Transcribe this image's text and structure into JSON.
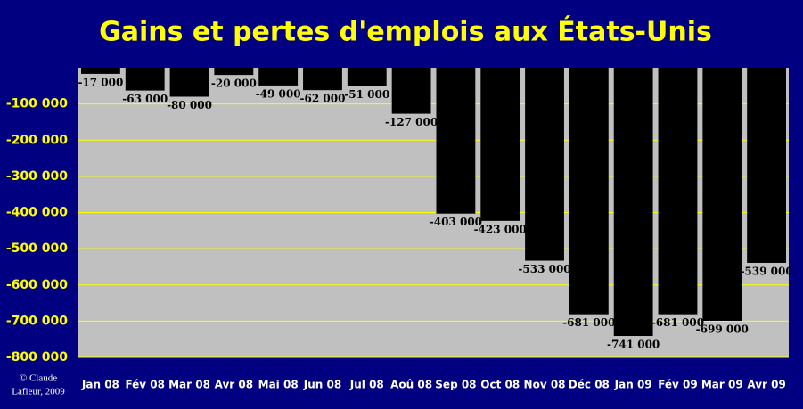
{
  "chart_data": {
    "type": "bar",
    "title": "Gains et pertes d'emplois aux États-Unis",
    "categories": [
      "Jan 08",
      "Fév 08",
      "Mar 08",
      "Avr 08",
      "Mai 08",
      "Jun 08",
      "Jul 08",
      "Aoû 08",
      "Sep 08",
      "Oct 08",
      "Nov 08",
      "Déc 08",
      "Jan 09",
      "Fév 09",
      "Mar 09",
      "Avr 09"
    ],
    "values": [
      -17000,
      -63000,
      -80000,
      -20000,
      -49000,
      -62000,
      -51000,
      -127000,
      -403000,
      -423000,
      -533000,
      -681000,
      -741000,
      -681000,
      -699000,
      -539000
    ],
    "value_labels": [
      "-17 000",
      "-63 000",
      "-80 000",
      "-20 000",
      "-49 000",
      "-62 000",
      "-51 000",
      "-127 000",
      "-403 000",
      "-423 000",
      "-533 000",
      "-681 000",
      "-741 000",
      "-681 000",
      "-699 000",
      "-539 000"
    ],
    "color": "#000000",
    "ylim": [
      -800000,
      0
    ],
    "yticks": [
      {
        "value": -100000,
        "label": "-100 000"
      },
      {
        "value": -200000,
        "label": "-200 000"
      },
      {
        "value": -300000,
        "label": "-300 000"
      },
      {
        "value": -400000,
        "label": "-400 000"
      },
      {
        "value": -500000,
        "label": "-500 000"
      },
      {
        "value": -600000,
        "label": "-600 000"
      },
      {
        "value": -700000,
        "label": "-700 000"
      },
      {
        "value": -800000,
        "label": "-800 000"
      }
    ],
    "grid": true,
    "grid_color": "#ffff00",
    "plot_background": "#c0c0c0",
    "credit": [
      "© Claude",
      "Lafleur, 2009"
    ]
  }
}
